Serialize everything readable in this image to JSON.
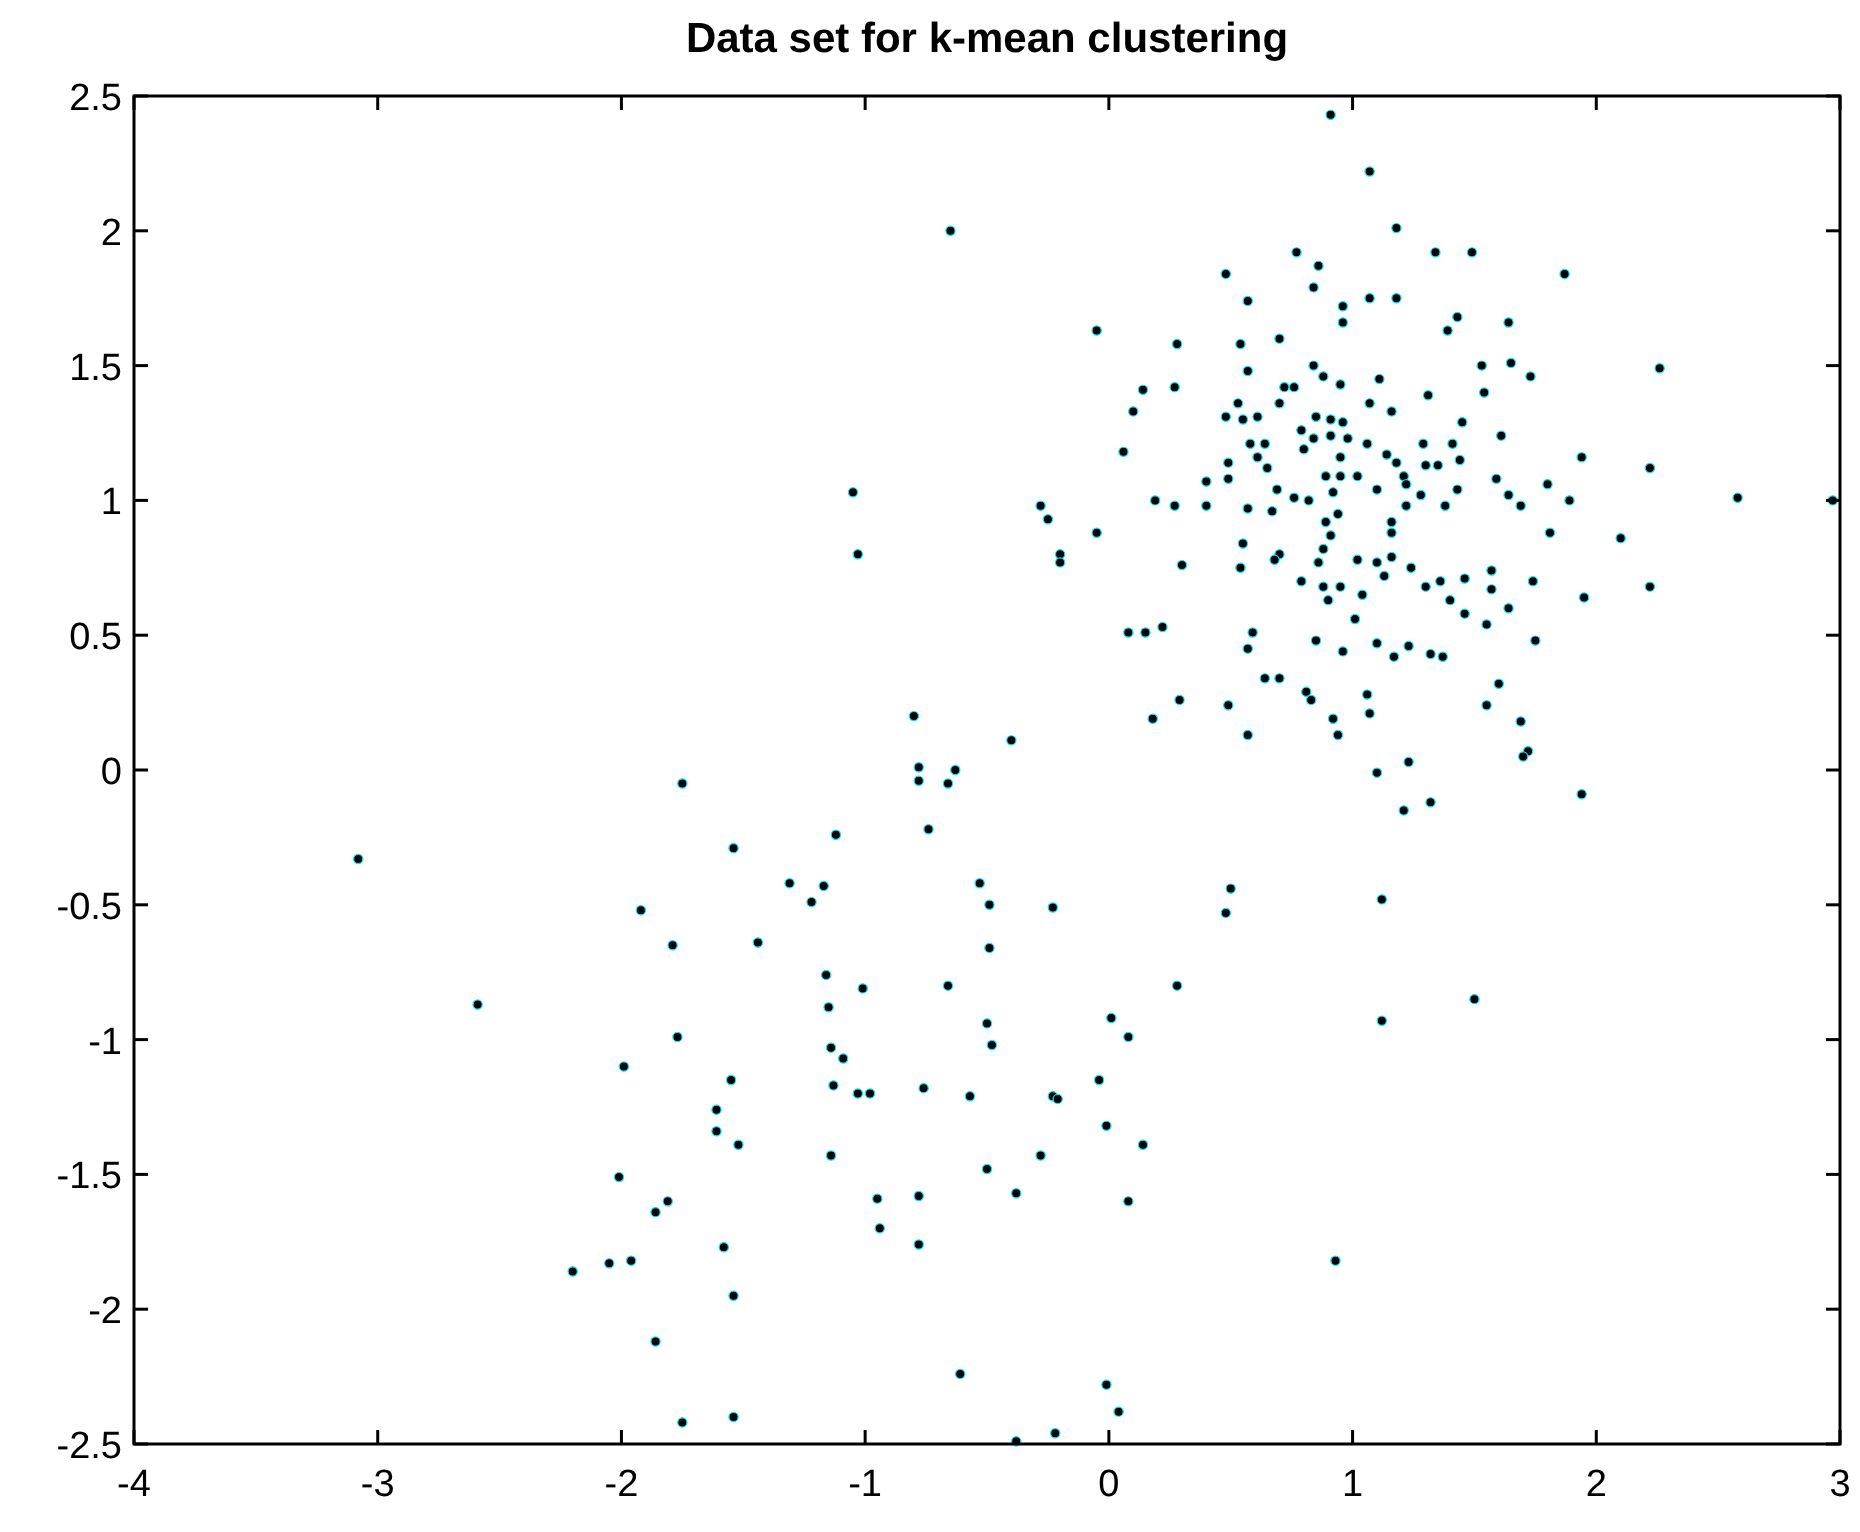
{
  "chart_data": {
    "type": "scatter",
    "title": "Data set for k-mean clustering",
    "xlim": [
      -4,
      3
    ],
    "ylim": [
      -2.5,
      2.5
    ],
    "xticks": [
      -4,
      -3,
      -2,
      -1,
      0,
      1,
      2,
      3
    ],
    "yticks": [
      -2.5,
      -2,
      -1.5,
      -1,
      -0.5,
      0,
      0.5,
      1,
      1.5,
      2,
      2.5
    ],
    "grid": false,
    "marker": "circle",
    "series": [
      {
        "color": "#000000",
        "x": [
          -3.08,
          -2.59,
          -1.75,
          -0.8,
          -0.4,
          -0.78,
          -0.78,
          -0.66,
          -0.63,
          -1.54,
          -1.12,
          -0.74,
          -1.92,
          -1.31,
          -1.17,
          -1.22,
          -1.79,
          -1.44,
          -0.53,
          -0.49,
          -0.23,
          -0.49,
          -1.16,
          -1.01,
          -0.66,
          -1.15,
          -0.5,
          -0.48,
          0.01,
          0.08,
          -1.77,
          -1.99,
          -1.55,
          -1.14,
          -1.09,
          -1.13,
          -1.03,
          -0.98,
          -0.76,
          -0.57,
          -0.23,
          -0.21,
          -0.04,
          -1.61,
          -1.61,
          -1.52,
          -0.01,
          0.14,
          -1.14,
          -0.28,
          -0.5,
          -2.01,
          -1.86,
          -1.81,
          -0.95,
          -0.78,
          -0.38,
          0.08,
          -0.94,
          -0.78,
          -1.58,
          -2.2,
          -2.05,
          -1.96,
          -1.54,
          -1.86,
          -0.61,
          -0.01,
          0.04,
          -1.75,
          -1.54,
          -0.22,
          -0.38,
          0.28,
          0.48,
          0.5,
          0.93,
          1.12,
          1.12,
          1.5,
          -1.05,
          -1.03,
          -0.65,
          -0.28,
          -0.25,
          -0.2,
          -0.2,
          -0.05,
          -0.05,
          2.97,
          0.91,
          1.07,
          1.18,
          0.77,
          0.86,
          0.84,
          1.34,
          1.49,
          1.87,
          0.48,
          0.57,
          0.96,
          1.07,
          1.18,
          0.96,
          1.43,
          1.39,
          1.64,
          0.28,
          0.54,
          0.7,
          0.57,
          0.84,
          1.11,
          1.53,
          1.65,
          1.73,
          2.26,
          0.14,
          0.27,
          0.1,
          0.72,
          0.76,
          0.88,
          0.95,
          1.31,
          1.54,
          0.7,
          0.53,
          0.48,
          0.55,
          0.61,
          0.79,
          0.85,
          0.91,
          0.96,
          1.07,
          1.16,
          0.91,
          0.98,
          1.06,
          0.84,
          0.8,
          1.45,
          1.61,
          1.29,
          1.41,
          0.06,
          0.58,
          0.64,
          0.61,
          0.65,
          0.49,
          0.4,
          0.49,
          0.95,
          0.89,
          0.95,
          1.02,
          1.14,
          1.18,
          1.21,
          1.3,
          1.35,
          1.44,
          1.94,
          2.22,
          0.69,
          0.76,
          0.82,
          0.92,
          1.1,
          1.22,
          1.28,
          1.43,
          1.59,
          1.64,
          1.69,
          1.8,
          1.89,
          2.58,
          0.19,
          0.27,
          0.4,
          0.57,
          0.67,
          0.89,
          0.94,
          1.16,
          1.22,
          1.38,
          0.55,
          1.16,
          0.91,
          1.81,
          2.1,
          0.3,
          0.54,
          0.7,
          0.68,
          0.88,
          0.86,
          1.02,
          1.1,
          1.16,
          1.24,
          0.79,
          0.88,
          0.95,
          0.9,
          1.04,
          1.13,
          1.3,
          1.36,
          1.46,
          1.57,
          1.57,
          1.74,
          1.4,
          1.46,
          1.55,
          1.64,
          1.95,
          2.22,
          1.01,
          0.08,
          0.15,
          0.22,
          0.59,
          0.57,
          0.85,
          0.96,
          1.1,
          1.17,
          1.23,
          1.32,
          1.37,
          1.75,
          0.64,
          0.7,
          0.81,
          0.83,
          1.06,
          1.07,
          1.6,
          1.55,
          0.29,
          0.18,
          0.49,
          0.57,
          0.92,
          0.94,
          1.69,
          1.72,
          1.7,
          1.1,
          1.23,
          1.21,
          1.32,
          1.94
        ],
        "values": [
          -0.33,
          -0.87,
          -0.05,
          0.2,
          0.11,
          0.01,
          -0.04,
          -0.05,
          0,
          -0.29,
          -0.24,
          -0.22,
          -0.52,
          -0.42,
          -0.43,
          -0.49,
          -0.65,
          -0.64,
          -0.42,
          -0.5,
          -0.51,
          -0.66,
          -0.76,
          -0.81,
          -0.8,
          -0.88,
          -0.94,
          -1.02,
          -0.92,
          -0.99,
          -0.99,
          -1.1,
          -1.15,
          -1.03,
          -1.07,
          -1.17,
          -1.2,
          -1.2,
          -1.18,
          -1.21,
          -1.21,
          -1.22,
          -1.15,
          -1.26,
          -1.34,
          -1.39,
          -1.32,
          -1.39,
          -1.43,
          -1.43,
          -1.48,
          -1.51,
          -1.64,
          -1.6,
          -1.59,
          -1.58,
          -1.57,
          -1.6,
          -1.7,
          -1.76,
          -1.77,
          -1.86,
          -1.83,
          -1.82,
          -1.95,
          -2.12,
          -2.24,
          -2.28,
          -2.38,
          -2.42,
          -2.4,
          -2.46,
          -2.49,
          -0.8,
          -0.53,
          -0.44,
          -1.82,
          -0.93,
          -0.48,
          -0.85,
          1.03,
          0.8,
          2,
          0.98,
          0.93,
          0.8,
          0.77,
          1.63,
          0.88,
          1,
          2.43,
          2.22,
          2.01,
          1.92,
          1.87,
          1.79,
          1.92,
          1.92,
          1.84,
          1.84,
          1.74,
          1.72,
          1.75,
          1.75,
          1.66,
          1.68,
          1.63,
          1.66,
          1.58,
          1.58,
          1.6,
          1.48,
          1.5,
          1.45,
          1.5,
          1.51,
          1.46,
          1.49,
          1.41,
          1.42,
          1.33,
          1.42,
          1.42,
          1.46,
          1.43,
          1.39,
          1.4,
          1.36,
          1.36,
          1.31,
          1.3,
          1.31,
          1.26,
          1.31,
          1.3,
          1.29,
          1.36,
          1.33,
          1.24,
          1.23,
          1.21,
          1.23,
          1.19,
          1.29,
          1.24,
          1.21,
          1.21,
          1.18,
          1.21,
          1.21,
          1.16,
          1.12,
          1.14,
          1.07,
          1.08,
          1.16,
          1.09,
          1.09,
          1.09,
          1.17,
          1.14,
          1.09,
          1.13,
          1.13,
          1.15,
          1.16,
          1.12,
          1.04,
          1.01,
          1,
          1.03,
          1.04,
          1.06,
          1.02,
          1.04,
          1.08,
          1.02,
          0.98,
          1.06,
          1,
          1.01,
          1,
          0.98,
          0.98,
          0.97,
          0.96,
          0.92,
          0.95,
          0.92,
          0.98,
          0.98,
          0.84,
          0.88,
          0.87,
          0.88,
          0.86,
          0.76,
          0.75,
          0.8,
          0.78,
          0.82,
          0.77,
          0.78,
          0.77,
          0.79,
          0.75,
          0.7,
          0.68,
          0.68,
          0.63,
          0.65,
          0.72,
          0.68,
          0.7,
          0.71,
          0.74,
          0.67,
          0.7,
          0.63,
          0.58,
          0.54,
          0.6,
          0.64,
          0.68,
          0.56,
          0.51,
          0.51,
          0.53,
          0.51,
          0.45,
          0.48,
          0.44,
          0.47,
          0.42,
          0.46,
          0.43,
          0.42,
          0.48,
          0.34,
          0.34,
          0.29,
          0.26,
          0.28,
          0.21,
          0.32,
          0.24,
          0.26,
          0.19,
          0.24,
          0.13,
          0.19,
          0.13,
          0.18,
          0.07,
          0.05,
          -0.01,
          0.03,
          -0.15,
          -0.12,
          -0.09
        ]
      }
    ]
  }
}
